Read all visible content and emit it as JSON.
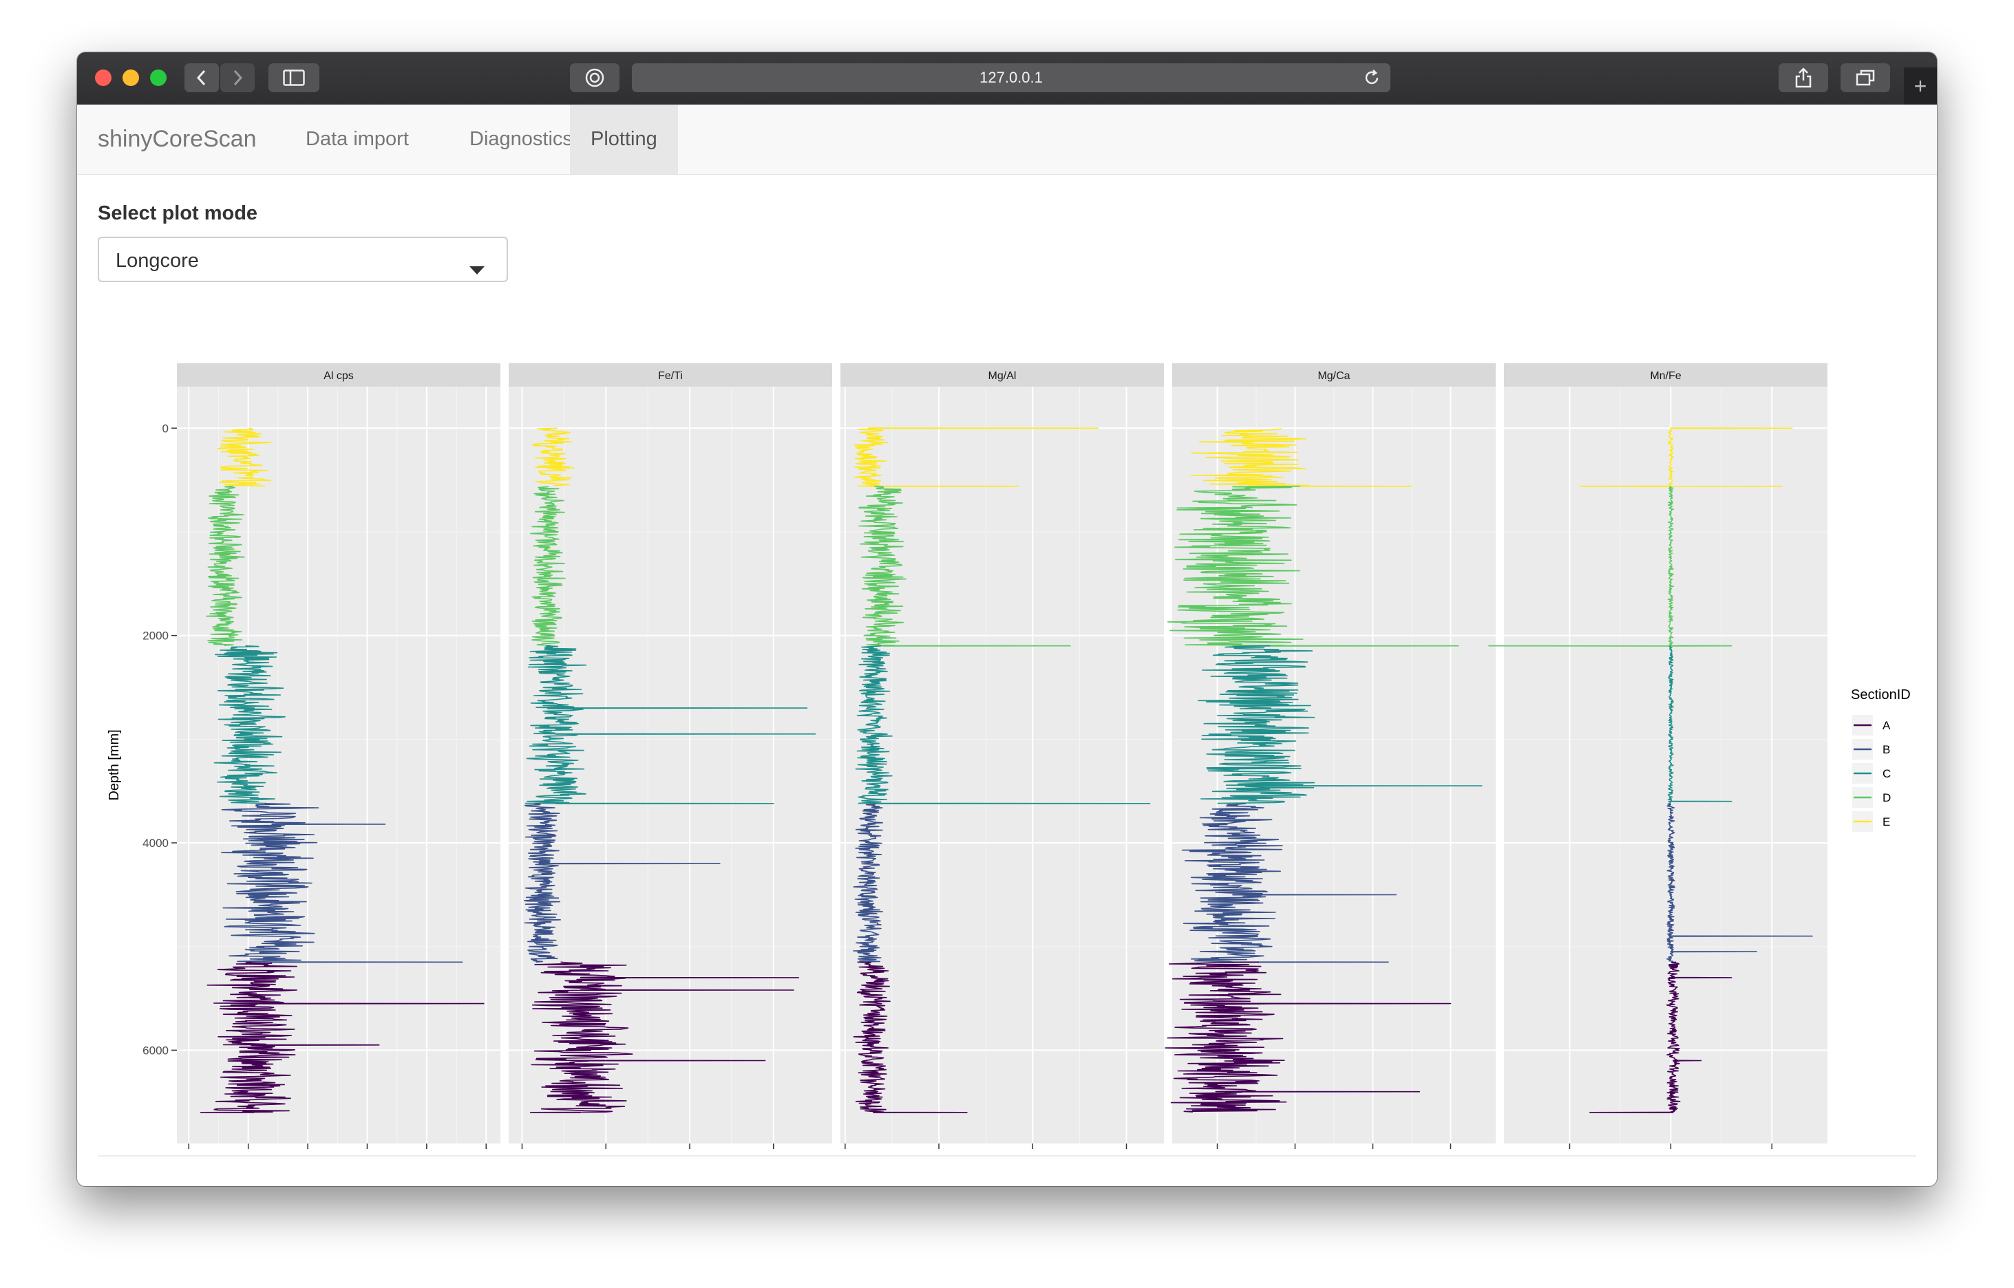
{
  "browser": {
    "url": "127.0.0.1"
  },
  "app": {
    "brand": "shinyCoreScan",
    "tabs": [
      {
        "label": "Data import",
        "active": false
      },
      {
        "label": "Diagnostics",
        "active": false
      },
      {
        "label": "Plotting",
        "active": true
      }
    ]
  },
  "controls": {
    "plot_mode_label": "Select plot mode",
    "plot_mode_value": "Longcore"
  },
  "chart_data": {
    "type": "line",
    "orientation": "depth-profile",
    "ylabel": "Depth [mm]",
    "y_reversed": true,
    "ylim": [
      6900,
      -400
    ],
    "y_ticks": [
      0,
      2000,
      4000,
      6000
    ],
    "grid": true,
    "legend": {
      "title": "SectionID",
      "placement": "right",
      "entries": [
        {
          "label": "A",
          "color": "#440154"
        },
        {
          "label": "B",
          "color": "#3b528b"
        },
        {
          "label": "C",
          "color": "#21908c"
        },
        {
          "label": "D",
          "color": "#5dc863"
        },
        {
          "label": "E",
          "color": "#fde725"
        }
      ]
    },
    "sections": [
      {
        "id": "E",
        "depth_range": [
          0,
          560
        ]
      },
      {
        "id": "D",
        "depth_range": [
          560,
          2100
        ]
      },
      {
        "id": "C",
        "depth_range": [
          2100,
          3620
        ]
      },
      {
        "id": "B",
        "depth_range": [
          3620,
          5150
        ]
      },
      {
        "id": "A",
        "depth_range": [
          5150,
          6600
        ]
      }
    ],
    "panels": [
      {
        "title": "Al cps",
        "xlim": [
          -100,
          2620
        ],
        "x_ticks": [
          "0",
          "500",
          "1000",
          "1500",
          "2000",
          "2500"
        ],
        "x_tick_values": [
          0,
          500,
          1000,
          1500,
          2000,
          2500
        ],
        "baseline": {
          "E": 450,
          "D": 300,
          "C": 500,
          "B": 700,
          "A": 550
        },
        "noise": {
          "E": 180,
          "D": 120,
          "C": 230,
          "B": 320,
          "A": 300
        },
        "spikes": [
          [
            5150,
            2300
          ],
          [
            5550,
            2480
          ],
          [
            3820,
            1650
          ],
          [
            5950,
            1600
          ],
          [
            6600,
            100
          ]
        ]
      },
      {
        "title": "Fe/Ti",
        "xlim": [
          -8,
          185
        ],
        "x_ticks": [
          "0",
          "50",
          "100",
          "150"
        ],
        "x_tick_values": [
          0,
          50,
          100,
          150
        ],
        "baseline": {
          "E": 18,
          "D": 15,
          "C": 20,
          "B": 12,
          "A": 35
        },
        "noise": {
          "E": 10,
          "D": 8,
          "C": 14,
          "B": 9,
          "A": 24
        },
        "spikes": [
          [
            2700,
            170
          ],
          [
            2950,
            175
          ],
          [
            3620,
            150
          ],
          [
            4200,
            118
          ],
          [
            5300,
            165
          ],
          [
            5420,
            162
          ],
          [
            6100,
            145
          ],
          [
            6600,
            5
          ]
        ]
      },
      {
        "title": "Mg/Al",
        "xlim": [
          -0.01,
          0.68
        ],
        "x_ticks": [
          "0.0",
          "0.2",
          "0.4",
          "0.6"
        ],
        "x_tick_values": [
          0,
          0.2,
          0.4,
          0.6
        ],
        "baseline": {
          "E": 0.05,
          "D": 0.08,
          "C": 0.06,
          "B": 0.05,
          "A": 0.06
        },
        "noise": {
          "E": 0.03,
          "D": 0.04,
          "C": 0.03,
          "B": 0.025,
          "A": 0.03
        },
        "spikes": [
          [
            0,
            0.54
          ],
          [
            560,
            0.37
          ],
          [
            2100,
            0.48
          ],
          [
            3620,
            0.65
          ],
          [
            6600,
            0.26
          ]
        ]
      },
      {
        "title": "Mg/Ca",
        "xlim": [
          0.0042,
          0.0458
        ],
        "x_ticks": [
          "0.01",
          "0.02",
          "0.03",
          "0.04"
        ],
        "x_tick_values": [
          0.01,
          0.02,
          0.03,
          0.04
        ],
        "baseline": {
          "E": 0.014,
          "D": 0.012,
          "C": 0.015,
          "B": 0.012,
          "A": 0.011
        },
        "noise": {
          "E": 0.006,
          "D": 0.007,
          "C": 0.006,
          "B": 0.005,
          "A": 0.006
        },
        "spikes": [
          [
            560,
            0.035
          ],
          [
            2100,
            0.041
          ],
          [
            3450,
            0.044
          ],
          [
            4500,
            0.033
          ],
          [
            5150,
            0.032
          ],
          [
            5550,
            0.04
          ],
          [
            6400,
            0.036
          ]
        ]
      },
      {
        "title": "Mn/Fe",
        "xlim": [
          -0.33,
          0.31
        ],
        "x_ticks": [
          "-0.2",
          "0.0",
          "0.2"
        ],
        "x_tick_values": [
          -0.2,
          0,
          0.2
        ],
        "baseline": {
          "E": 0.0,
          "D": 0.0,
          "C": 0.0,
          "B": 0.0,
          "A": 0.005
        },
        "noise": {
          "E": 0.004,
          "D": 0.004,
          "C": 0.004,
          "B": 0.006,
          "A": 0.01
        },
        "spikes": [
          [
            0,
            0.24
          ],
          [
            560,
            0.22
          ],
          [
            560,
            -0.18
          ],
          [
            2100,
            -0.36
          ],
          [
            2100,
            0.12
          ],
          [
            3600,
            0.12
          ],
          [
            4900,
            0.28
          ],
          [
            5050,
            0.17
          ],
          [
            5300,
            0.12
          ],
          [
            6100,
            0.06
          ],
          [
            6600,
            -0.16
          ]
        ]
      }
    ]
  }
}
